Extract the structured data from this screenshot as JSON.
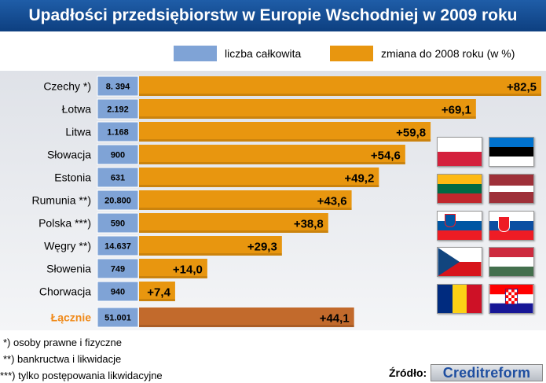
{
  "title": "Upadłości przedsiębiorstw w Europie Wschodniej w 2009 roku",
  "legend": {
    "total_label": "liczba całkowita",
    "change_label": "zmiana do 2008 roku (w %)",
    "total_color": "#7fa3d6",
    "change_color": "#e8960f"
  },
  "chart_data": {
    "type": "bar",
    "orientation": "horizontal",
    "categories": [
      "Czechy *)",
      "Łotwa",
      "Litwa",
      "Słowacja",
      "Estonia",
      "Rumunia **)",
      "Polska ***)",
      "Węgry **)",
      "Słowenia",
      "Chorwacja"
    ],
    "series": [
      {
        "name": "liczba całkowita",
        "values": [
          8394,
          2192,
          1168,
          900,
          631,
          20800,
          590,
          14637,
          749,
          940
        ],
        "labels": [
          "8. 394",
          "2.192",
          "1.168",
          "900",
          "631",
          "20.800",
          "590",
          "14.637",
          "749",
          "940"
        ]
      },
      {
        "name": "zmiana do 2008 roku (w %)",
        "values": [
          82.5,
          69.1,
          59.8,
          54.6,
          49.2,
          43.6,
          38.8,
          29.3,
          14.0,
          7.4
        ],
        "labels": [
          "+82,5",
          "+69,1",
          "+59,8",
          "+54,6",
          "+49,2",
          "+43,6",
          "+38,8",
          "+29,3",
          "+14,0",
          "+7,4"
        ]
      }
    ],
    "total": {
      "category": "Łącznie",
      "count": 51001,
      "count_label": "51.001",
      "change": 44.1,
      "change_label": "+44,1"
    },
    "total_color": "#c26a2c",
    "total_label_color": "#f08a1a"
  },
  "notes": [
    "*) osoby prawne i fizyczne",
    "**) bankructwa i likwidacje",
    "***) tylko postępowania likwidacyjne"
  ],
  "source": {
    "label": "Źródło:",
    "logo_text": "Creditreform"
  },
  "flags": [
    "poland-flag",
    "estonia-flag",
    "lithuania-flag",
    "latvia-flag",
    "slovenia-flag",
    "slovakia-flag",
    "czech-flag",
    "hungary-flag",
    "romania-flag",
    "croatia-flag"
  ]
}
